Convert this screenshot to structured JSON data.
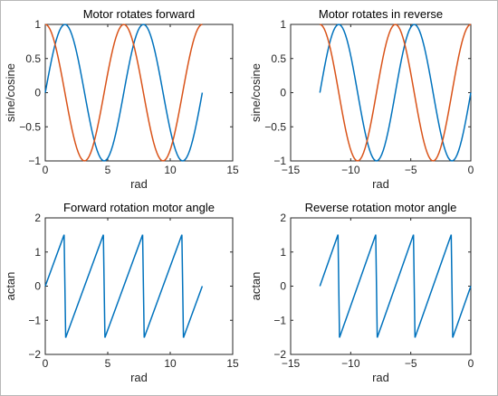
{
  "chart_data": [
    {
      "type": "line",
      "title": "Motor rotates forward",
      "xlabel": "rad",
      "ylabel": "sine/cosine",
      "xlim": [
        0,
        15
      ],
      "ylim": [
        -1,
        1
      ],
      "xticks": [
        0,
        5,
        10,
        15
      ],
      "yticks": [
        -1,
        -0.5,
        0,
        0.5,
        1
      ],
      "x_range": [
        0,
        12.566
      ],
      "series": [
        {
          "function": "sin",
          "color": "#0072BD"
        },
        {
          "function": "cos",
          "color": "#D95319"
        }
      ]
    },
    {
      "type": "line",
      "title": "Motor rotates in reverse",
      "xlabel": "rad",
      "ylabel": "sine/cosine",
      "xlim": [
        -15,
        0
      ],
      "ylim": [
        -1,
        1
      ],
      "xticks": [
        -15,
        -10,
        -5,
        0
      ],
      "yticks": [
        -1,
        -0.5,
        0,
        0.5,
        1
      ],
      "x_range": [
        -12.566,
        0
      ],
      "series": [
        {
          "function": "sin",
          "color": "#0072BD"
        },
        {
          "function": "cos",
          "color": "#D95319"
        }
      ]
    },
    {
      "type": "line",
      "title": "Forward rotation motor angle",
      "xlabel": "rad",
      "ylabel": "actan",
      "xlim": [
        0,
        15
      ],
      "ylim": [
        -2,
        2
      ],
      "xticks": [
        0,
        5,
        10,
        15
      ],
      "yticks": [
        -2,
        -1,
        0,
        1,
        2
      ],
      "x_range": [
        0,
        12.566
      ],
      "series": [
        {
          "function": "atan(tan)",
          "color": "#0072BD"
        }
      ]
    },
    {
      "type": "line",
      "title": "Reverse rotation motor angle",
      "xlabel": "rad",
      "ylabel": "actan",
      "xlim": [
        -15,
        0
      ],
      "ylim": [
        -2,
        2
      ],
      "xticks": [
        -15,
        -10,
        -5,
        0
      ],
      "yticks": [
        -2,
        -1,
        0,
        1,
        2
      ],
      "x_range": [
        -12.566,
        0
      ],
      "series": [
        {
          "function": "atan(tan)",
          "color": "#0072BD"
        }
      ]
    }
  ]
}
